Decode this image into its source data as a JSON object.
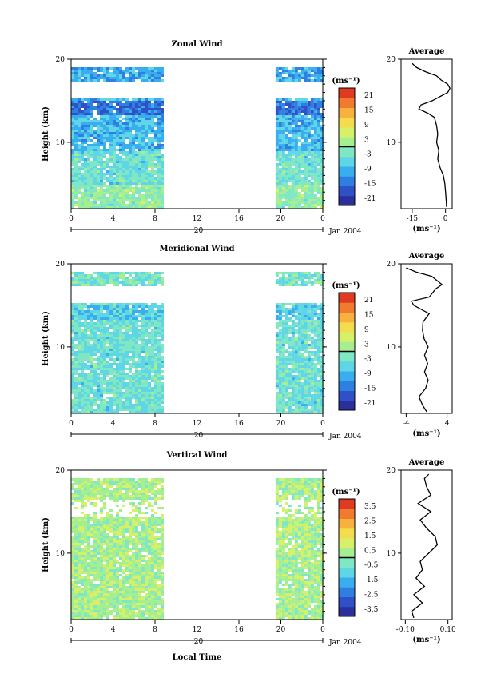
{
  "chart_data": [
    {
      "type": "heatmap",
      "title": "Zonal Wind",
      "ylabel": "Height (km)",
      "xlim": [
        0,
        24
      ],
      "ylim": [
        2,
        20
      ],
      "x_ticks": [
        "0",
        "4",
        "8",
        "12",
        "16",
        "20",
        "0"
      ],
      "y_ticks": [
        "20",
        "10"
      ],
      "date_label": "20",
      "month_label": "Jan 2004",
      "colorbar": {
        "unit": "(ms⁻¹)",
        "ticks": [
          "21",
          "15",
          "9",
          "3",
          "-3",
          "-9",
          "-15",
          "-21"
        ],
        "range": [
          -24,
          24
        ]
      },
      "data_segments": [
        [
          0,
          8.7
        ],
        [
          19.5,
          24
        ]
      ],
      "average": {
        "title": "Average",
        "xlabel": "(ms⁻¹)",
        "x_ticks": [
          "-15",
          "0"
        ],
        "xlim": [
          -20,
          3
        ],
        "profile": [
          {
            "h": 2.2,
            "v": 0.5
          },
          {
            "h": 3,
            "v": 0.3
          },
          {
            "h": 4,
            "v": 0
          },
          {
            "h": 5,
            "v": -0.3
          },
          {
            "h": 6,
            "v": -1
          },
          {
            "h": 7,
            "v": -2.5
          },
          {
            "h": 8,
            "v": -3.5
          },
          {
            "h": 9,
            "v": -3
          },
          {
            "h": 10,
            "v": -4
          },
          {
            "h": 11,
            "v": -3.5
          },
          {
            "h": 12,
            "v": -4
          },
          {
            "h": 13,
            "v": -5
          },
          {
            "h": 13.5,
            "v": -8
          },
          {
            "h": 14,
            "v": -12
          },
          {
            "h": 14.5,
            "v": -11
          },
          {
            "h": 15,
            "v": -6
          },
          {
            "h": 16,
            "v": 1
          },
          {
            "h": 16.5,
            "v": 2
          },
          {
            "h": 17,
            "v": 1
          },
          {
            "h": 17.5,
            "v": -2
          },
          {
            "h": 18,
            "v": -4
          },
          {
            "h": 18.5,
            "v": -9
          },
          {
            "h": 19,
            "v": -13
          },
          {
            "h": 19.5,
            "v": -15
          }
        ]
      }
    },
    {
      "type": "heatmap",
      "title": "Meridional Wind",
      "ylabel": "Height (km)",
      "xlim": [
        0,
        24
      ],
      "ylim": [
        2,
        20
      ],
      "x_ticks": [
        "0",
        "4",
        "8",
        "12",
        "16",
        "20",
        "0"
      ],
      "y_ticks": [
        "20",
        "10"
      ],
      "date_label": "20",
      "month_label": "Jan 2004",
      "colorbar": {
        "unit": "(ms⁻¹)",
        "ticks": [
          "21",
          "15",
          "9",
          "3",
          "-3",
          "-9",
          "-15",
          "-21"
        ],
        "range": [
          -24,
          24
        ]
      },
      "data_segments": [
        [
          0,
          8.7
        ],
        [
          19.5,
          24
        ]
      ],
      "average": {
        "title": "Average",
        "xlabel": "(ms⁻¹)",
        "x_ticks": [
          "-4",
          "4"
        ],
        "xlim": [
          -5,
          5
        ],
        "profile": [
          {
            "h": 2.2,
            "v": 0
          },
          {
            "h": 3,
            "v": -0.8
          },
          {
            "h": 4,
            "v": -1.5
          },
          {
            "h": 5,
            "v": -0.2
          },
          {
            "h": 6,
            "v": 0.3
          },
          {
            "h": 7,
            "v": -0.4
          },
          {
            "h": 8,
            "v": 0.2
          },
          {
            "h": 9,
            "v": -0.4
          },
          {
            "h": 10,
            "v": 0.3
          },
          {
            "h": 11,
            "v": -0.5
          },
          {
            "h": 12,
            "v": -0.8
          },
          {
            "h": 13,
            "v": -0.7
          },
          {
            "h": 14,
            "v": 0.5
          },
          {
            "h": 15,
            "v": -2.5
          },
          {
            "h": 15.5,
            "v": -3
          },
          {
            "h": 16,
            "v": 0.5
          },
          {
            "h": 17,
            "v": 1.8
          },
          {
            "h": 17.5,
            "v": 3
          },
          {
            "h": 18,
            "v": 2
          },
          {
            "h": 18.5,
            "v": 1
          },
          {
            "h": 19,
            "v": -2
          },
          {
            "h": 19.5,
            "v": -4
          }
        ]
      }
    },
    {
      "type": "heatmap",
      "title": "Vertical Wind",
      "ylabel": "Height (km)",
      "xlabel": "Local Time",
      "xlim": [
        0,
        24
      ],
      "ylim": [
        2,
        20
      ],
      "x_ticks": [
        "0",
        "4",
        "8",
        "12",
        "16",
        "20",
        "0"
      ],
      "y_ticks": [
        "20",
        "10"
      ],
      "date_label": "20",
      "month_label": "Jan 2004",
      "colorbar": {
        "unit": "(ms⁻¹)",
        "ticks": [
          "3.5",
          "2.5",
          "1.5",
          "0.5",
          "-0.5",
          "-1.5",
          "-2.5",
          "-3.5"
        ],
        "range": [
          -4,
          4
        ]
      },
      "data_segments": [
        [
          0,
          8.7
        ],
        [
          19.5,
          24
        ]
      ],
      "average": {
        "title": "Average",
        "xlabel": "(ms⁻¹)",
        "x_ticks": [
          "-0.10",
          "0.10"
        ],
        "xlim": [
          -0.12,
          0.12
        ],
        "profile": [
          {
            "h": 2.2,
            "v": -0.06
          },
          {
            "h": 3,
            "v": -0.07
          },
          {
            "h": 4,
            "v": -0.02
          },
          {
            "h": 5,
            "v": -0.06
          },
          {
            "h": 6,
            "v": -0.01
          },
          {
            "h": 7,
            "v": -0.05
          },
          {
            "h": 8,
            "v": -0.02
          },
          {
            "h": 9,
            "v": -0.03
          },
          {
            "h": 10,
            "v": 0.01
          },
          {
            "h": 11,
            "v": 0.05
          },
          {
            "h": 12,
            "v": 0.04
          },
          {
            "h": 13,
            "v": 0.0
          },
          {
            "h": 14,
            "v": -0.03
          },
          {
            "h": 15,
            "v": 0.02
          },
          {
            "h": 16,
            "v": -0.04
          },
          {
            "h": 17,
            "v": 0.02
          },
          {
            "h": 18,
            "v": 0.0
          },
          {
            "h": 19,
            "v": -0.01
          },
          {
            "h": 19.5,
            "v": 0.01
          }
        ]
      }
    }
  ]
}
